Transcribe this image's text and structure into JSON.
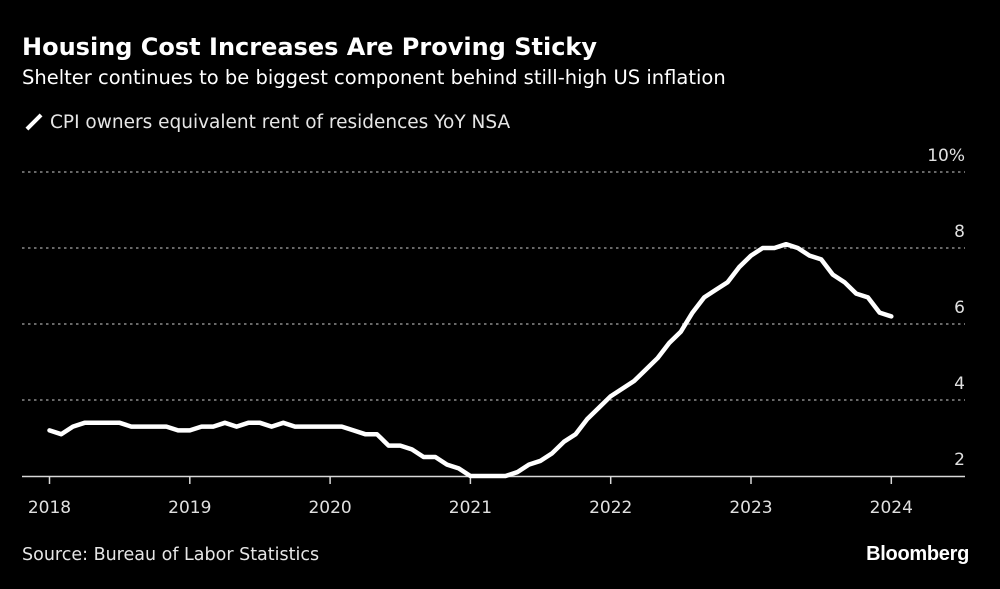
{
  "header": {
    "title": "Housing Cost Increases Are Proving Sticky",
    "subtitle": "Shelter continues to be biggest component behind still-high US inflation"
  },
  "legend": {
    "label": "CPI owners equivalent rent of residences YoY NSA"
  },
  "footer": {
    "source": "Source: Bureau of Labor Statistics",
    "brand": "Bloomberg"
  },
  "colors": {
    "background": "#000000",
    "line": "#ffffff",
    "grid": "#8a8a8a",
    "axis": "#d9d9d9"
  },
  "chart_data": {
    "type": "line",
    "title": "Housing Cost Increases Are Proving Sticky",
    "subtitle": "Shelter continues to be biggest component behind still-high US inflation",
    "xlabel": "",
    "ylabel": "",
    "x_start": "2018-01",
    "x_end": "2024-01",
    "frequency": "monthly",
    "xlim": [
      2018.0,
      2024.75
    ],
    "ylim": [
      2,
      10
    ],
    "x_ticks": [
      2018,
      2019,
      2020,
      2021,
      2022,
      2023,
      2024
    ],
    "x_tick_labels": [
      "2018",
      "2019",
      "2020",
      "2021",
      "2022",
      "2023",
      "2024"
    ],
    "y_ticks": [
      2,
      4,
      6,
      8,
      10
    ],
    "y_tick_labels": [
      "2",
      "4",
      "6",
      "8",
      "10%"
    ],
    "grid": true,
    "legend_position": "top-left",
    "series": [
      {
        "name": "CPI owners equivalent rent of residences YoY NSA",
        "values": [
          3.2,
          3.1,
          3.3,
          3.4,
          3.4,
          3.4,
          3.4,
          3.3,
          3.3,
          3.3,
          3.3,
          3.2,
          3.2,
          3.3,
          3.3,
          3.4,
          3.3,
          3.4,
          3.4,
          3.3,
          3.4,
          3.3,
          3.3,
          3.3,
          3.3,
          3.3,
          3.2,
          3.1,
          3.1,
          2.8,
          2.8,
          2.7,
          2.5,
          2.5,
          2.3,
          2.2,
          2.0,
          2.0,
          2.0,
          2.0,
          2.1,
          2.3,
          2.4,
          2.6,
          2.9,
          3.1,
          3.5,
          3.8,
          4.1,
          4.3,
          4.5,
          4.8,
          5.1,
          5.5,
          5.8,
          6.3,
          6.7,
          6.9,
          7.1,
          7.5,
          7.8,
          8.0,
          8.0,
          8.1,
          8.0,
          7.8,
          7.7,
          7.3,
          7.1,
          6.8,
          6.7,
          6.3,
          6.2
        ]
      }
    ],
    "source": "Source: Bureau of Labor Statistics"
  }
}
